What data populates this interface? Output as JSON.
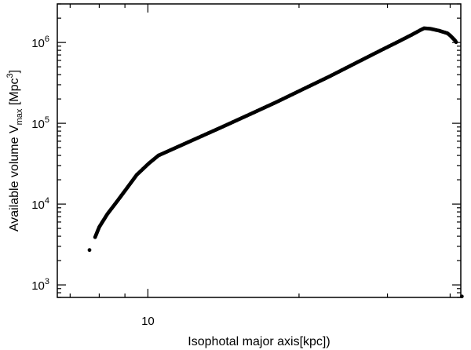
{
  "chart_data": {
    "type": "scatter",
    "xscale": "log",
    "yscale": "log",
    "xlim": [
      6.6,
      42.0
    ],
    "ylim": [
      700,
      3000000
    ],
    "x_ticks": [
      {
        "value": 10,
        "label": "10"
      }
    ],
    "y_ticks": [
      {
        "value": 1000,
        "base": "10",
        "exp": "3"
      },
      {
        "value": 10000,
        "base": "10",
        "exp": "4"
      },
      {
        "value": 100000,
        "base": "10",
        "exp": "5"
      },
      {
        "value": 1000000,
        "base": "10",
        "exp": "6"
      }
    ],
    "xlabel": "Isophotal major axis[kpc])",
    "ylabel": {
      "main": "Available volume V",
      "subscript": "max",
      "unit_open": " [Mpc",
      "unit_sup": "3",
      "unit_close": "]"
    },
    "grid": false,
    "marker_color": "#000000",
    "series": [
      {
        "curve_points": [
          [
            7.85,
            3900
          ],
          [
            8.0,
            5200
          ],
          [
            8.3,
            7500
          ],
          [
            8.7,
            11000
          ],
          [
            9.1,
            16000
          ],
          [
            9.5,
            23000
          ],
          [
            10.05,
            32000
          ],
          [
            10.5,
            40000
          ],
          [
            12.0,
            58000
          ],
          [
            14.0,
            89000
          ],
          [
            16.0,
            130000
          ],
          [
            18.0,
            182000
          ],
          [
            20.0,
            250000
          ],
          [
            23.0,
            380000
          ],
          [
            26.0,
            560000
          ],
          [
            29.0,
            790000
          ],
          [
            31.5,
            1020000
          ],
          [
            33.5,
            1240000
          ],
          [
            35.1,
            1450000
          ],
          [
            35.5,
            1500000
          ],
          [
            36.5,
            1480000
          ],
          [
            38.0,
            1400000
          ],
          [
            39.5,
            1300000
          ],
          [
            40.0,
            1220000
          ],
          [
            40.9,
            1060000
          ],
          [
            41.1,
            1010000
          ]
        ],
        "isolated_points": [
          [
            7.65,
            2700
          ],
          [
            42.2,
            720
          ]
        ]
      }
    ]
  }
}
